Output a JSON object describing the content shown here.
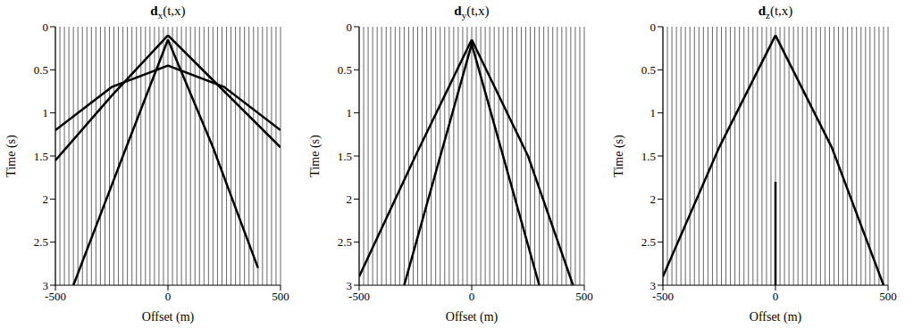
{
  "chart_data": [
    {
      "type": "line",
      "title": "dx(t,x)",
      "x_label": "Offset (m)",
      "y_label": "Time (s)",
      "xlim": [
        -500,
        500
      ],
      "ylim": [
        0,
        3
      ],
      "xticks": [
        -500,
        0,
        500
      ],
      "yticks": [
        0,
        0.5,
        1,
        1.5,
        2,
        2.5,
        3
      ],
      "traces": [
        -500,
        -480,
        -460,
        -440,
        -420,
        -400,
        -380,
        -360,
        -340,
        -320,
        -300,
        -280,
        -260,
        -240,
        -220,
        -200,
        -180,
        -160,
        -140,
        -120,
        -100,
        -80,
        -60,
        -40,
        -20,
        0,
        20,
        40,
        60,
        80,
        100,
        120,
        140,
        160,
        180,
        200,
        220,
        240,
        260,
        280,
        300,
        320,
        340,
        360,
        380,
        400,
        420,
        440,
        460,
        480,
        500
      ],
      "series": [
        {
          "color": "#000000",
          "x": [
            -500,
            -250,
            0
          ],
          "values": [
            1.55,
            0.8,
            0.1
          ]
        },
        {
          "color": "#000000",
          "x": [
            0,
            250,
            500
          ],
          "values": [
            0.1,
            0.75,
            1.4
          ]
        },
        {
          "color": "#000000",
          "x": [
            -420,
            -200,
            0
          ],
          "values": [
            3.0,
            1.5,
            0.15
          ]
        },
        {
          "color": "#000000",
          "x": [
            0,
            200,
            400
          ],
          "values": [
            0.15,
            1.4,
            2.8
          ]
        },
        {
          "color": "#000000",
          "x": [
            -500,
            -250,
            0,
            250,
            500
          ],
          "values": [
            1.2,
            0.7,
            0.45,
            0.7,
            1.2
          ]
        }
      ]
    },
    {
      "type": "line",
      "title": "dy(t,x)",
      "x_label": "Offset (m)",
      "y_label": "Time (s)",
      "xlim": [
        -500,
        500
      ],
      "ylim": [
        0,
        3
      ],
      "xticks": [
        -500,
        0,
        500
      ],
      "yticks": [
        0,
        0.5,
        1,
        1.5,
        2,
        2.5,
        3
      ],
      "traces": [
        -500,
        -480,
        -460,
        -440,
        -420,
        -400,
        -380,
        -360,
        -340,
        -320,
        -300,
        -280,
        -260,
        -240,
        -220,
        -200,
        -180,
        -160,
        -140,
        -120,
        -100,
        -80,
        -60,
        -40,
        -20,
        0,
        20,
        40,
        60,
        80,
        100,
        120,
        140,
        160,
        180,
        200,
        220,
        240,
        260,
        280,
        300,
        320,
        340,
        360,
        380,
        400,
        420,
        440,
        460,
        480,
        500
      ],
      "series": [
        {
          "color": "#000000",
          "x": [
            -500,
            -250,
            0
          ],
          "values": [
            2.9,
            1.5,
            0.15
          ]
        },
        {
          "color": "#000000",
          "x": [
            0,
            250,
            450
          ],
          "values": [
            0.15,
            1.5,
            3.0
          ]
        },
        {
          "color": "#000000",
          "x": [
            -300,
            0,
            300
          ],
          "values": [
            3.0,
            0.2,
            3.0
          ]
        }
      ]
    },
    {
      "type": "line",
      "title": "dz(t,x)",
      "x_label": "Offset (m)",
      "y_label": "Time (s)",
      "xlim": [
        -500,
        500
      ],
      "ylim": [
        0,
        3
      ],
      "xticks": [
        -500,
        0,
        500
      ],
      "yticks": [
        0,
        0.5,
        1,
        1.5,
        2,
        2.5,
        3
      ],
      "traces": [
        -500,
        -480,
        -460,
        -440,
        -420,
        -400,
        -380,
        -360,
        -340,
        -320,
        -300,
        -280,
        -260,
        -240,
        -220,
        -200,
        -180,
        -160,
        -140,
        -120,
        -100,
        -80,
        -60,
        -40,
        -20,
        0,
        20,
        40,
        60,
        80,
        100,
        120,
        140,
        160,
        180,
        200,
        220,
        240,
        260,
        280,
        300,
        320,
        340,
        360,
        380,
        400,
        420,
        440,
        460,
        480,
        500
      ],
      "series": [
        {
          "color": "#000000",
          "x": [
            -500,
            -250,
            0
          ],
          "values": [
            2.9,
            1.4,
            0.1
          ]
        },
        {
          "color": "#000000",
          "x": [
            0,
            250,
            480
          ],
          "values": [
            0.1,
            1.4,
            3.0
          ]
        },
        {
          "color": "#000000",
          "x": [
            0,
            0
          ],
          "values": [
            1.8,
            3.0
          ]
        }
      ]
    }
  ]
}
